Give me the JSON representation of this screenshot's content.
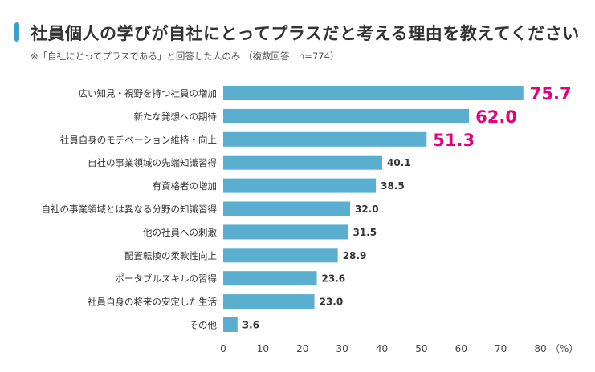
{
  "title": "社員個人の学びが自社にとってプラスだと考える理由を教えてください",
  "subtitle": "※「自社にとってプラスである」と回答した人のみ （複数回答　n=774）",
  "colors": {
    "bar": "#5aafd0",
    "accent": "#3aa0c9",
    "highlight": "#e4007f",
    "label": "#333333"
  },
  "chart_data": {
    "type": "bar",
    "orientation": "horizontal",
    "categories": [
      "広い知見・視野を持つ社員の増加",
      "新たな発想への期待",
      "社員自身のモチベーション維持・向上",
      "自社の事業領域の先端知識習得",
      "有資格者の増加",
      "自社の事業領域とは異なる分野の知識習得",
      "他の社員への刺激",
      "配置転換の柔軟性向上",
      "ポータブルスキルの習得",
      "社員自身の将来の安定した生活",
      "その他"
    ],
    "values": [
      75.7,
      62.0,
      51.3,
      40.1,
      38.5,
      32.0,
      31.5,
      28.9,
      23.6,
      23.0,
      3.6
    ],
    "value_labels": [
      "75.7",
      "62.0",
      "51.3",
      "40.1",
      "38.5",
      "32.0",
      "31.5",
      "28.9",
      "23.6",
      "23.0",
      "3.6"
    ],
    "highlighted_top": 3,
    "xlim": [
      0,
      80
    ],
    "xticks": [
      "0",
      "10",
      "20",
      "30",
      "40",
      "50",
      "60",
      "70",
      "80"
    ],
    "xunit": "（%）",
    "grid": false
  }
}
